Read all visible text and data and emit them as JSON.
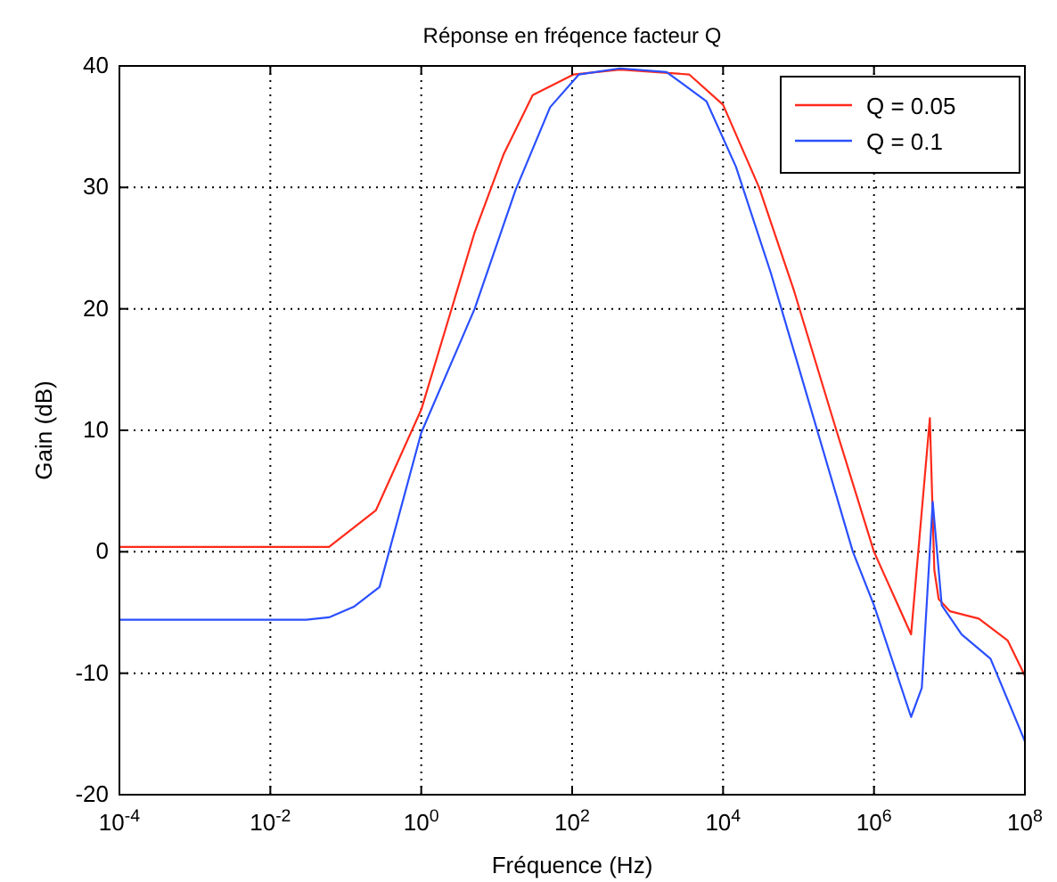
{
  "chart_data": {
    "type": "line",
    "title": "Réponse en fréqence facteur Q",
    "xlabel": "Fréquence (Hz)",
    "ylabel": "Gain (dB)",
    "log": "x",
    "xlim": [
      0.0001,
      100000000
    ],
    "xticks": [
      {
        "value": 0.0001,
        "label": "10$^{-4}$"
      },
      {
        "value": 0.01,
        "label": "10$^{-2}$"
      },
      {
        "value": 1,
        "label": "10$^{0}$"
      },
      {
        "value": 100,
        "label": "10$^{2}$"
      },
      {
        "value": 10000,
        "label": "10$^{4}$"
      },
      {
        "value": 1000000,
        "label": "10$^{6}$"
      },
      {
        "value": 100000000,
        "label": "10$^{8}$"
      }
    ],
    "ylim": [
      -20,
      40
    ],
    "yticks": [
      -20,
      -10,
      0,
      10,
      20,
      30,
      40
    ],
    "grid": true,
    "legend": "top right",
    "marker": "none",
    "line_style": "solid",
    "series": [
      {
        "name": "Q = 0.05",
        "color": "#ff2a1a",
        "x": [
          0.0001,
          0.06,
          0.25,
          1,
          5.1,
          12.3,
          30,
          105,
          430,
          3550,
          10000,
          30000,
          87000,
          310000,
          1000000,
          3100000,
          5500000,
          6300000,
          7200000,
          10200000,
          24500000,
          59000000,
          100000000
        ],
        "values": [
          0.4,
          0.4,
          3.4,
          11.7,
          26.3,
          32.7,
          37.6,
          39.3,
          39.7,
          39.3,
          36.8,
          30,
          21.5,
          10.2,
          0,
          -6.8,
          11,
          -1.5,
          -3.9,
          -4.9,
          -5.5,
          -7.3,
          -10.2
        ]
      },
      {
        "name": "Q = 0.1",
        "color": "#2a4fff",
        "x": [
          0.0001,
          0.03,
          0.06,
          0.13,
          0.28,
          1,
          5.1,
          17.8,
          51,
          123,
          430,
          1780,
          6000,
          14800,
          42700,
          91000,
          525000,
          1000000,
          3100000,
          4300000,
          6000000,
          7900000,
          14500000,
          35000000,
          100000000
        ],
        "values": [
          -5.6,
          -5.6,
          -5.4,
          -4.5,
          -2.9,
          9.8,
          20,
          29.8,
          36.6,
          39.3,
          39.8,
          39.5,
          37.1,
          31.7,
          23,
          16.1,
          0,
          -4.4,
          -13.6,
          -11.2,
          4.1,
          -4.4,
          -6.8,
          -8.8,
          -15.6
        ]
      }
    ]
  }
}
